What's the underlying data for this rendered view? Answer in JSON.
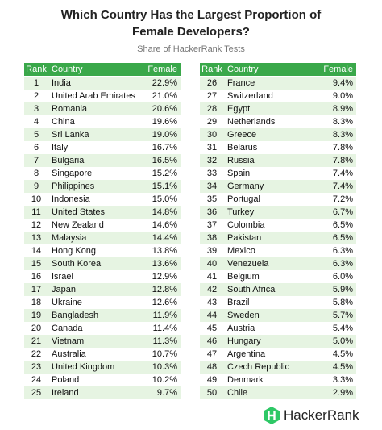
{
  "header": {
    "title_line1": "Which Country Has the Largest Proportion of",
    "title_line2": "Female Developers?",
    "subtitle": "Share of HackerRank Tests"
  },
  "tables": [
    {
      "columns": [
        "Rank",
        "Country",
        "Female"
      ],
      "rows": [
        [
          1,
          "India",
          "22.9%"
        ],
        [
          2,
          "United Arab Emirates",
          "21.0%"
        ],
        [
          3,
          "Romania",
          "20.6%"
        ],
        [
          4,
          "China",
          "19.6%"
        ],
        [
          5,
          "Sri Lanka",
          "19.0%"
        ],
        [
          6,
          "Italy",
          "16.7%"
        ],
        [
          7,
          "Bulgaria",
          "16.5%"
        ],
        [
          8,
          "Singapore",
          "15.2%"
        ],
        [
          9,
          "Philippines",
          "15.1%"
        ],
        [
          10,
          "Indonesia",
          "15.0%"
        ],
        [
          11,
          "United States",
          "14.8%"
        ],
        [
          12,
          "New Zealand",
          "14.6%"
        ],
        [
          13,
          "Malaysia",
          "14.4%"
        ],
        [
          14,
          "Hong Kong",
          "13.8%"
        ],
        [
          15,
          "South Korea",
          "13.6%"
        ],
        [
          16,
          "Israel",
          "12.9%"
        ],
        [
          17,
          "Japan",
          "12.8%"
        ],
        [
          18,
          "Ukraine",
          "12.6%"
        ],
        [
          19,
          "Bangladesh",
          "11.9%"
        ],
        [
          20,
          "Canada",
          "11.4%"
        ],
        [
          21,
          "Vietnam",
          "11.3%"
        ],
        [
          22,
          "Australia",
          "10.7%"
        ],
        [
          23,
          "United Kingdom",
          "10.3%"
        ],
        [
          24,
          "Poland",
          "10.2%"
        ],
        [
          25,
          "Ireland",
          "9.7%"
        ]
      ]
    },
    {
      "columns": [
        "Rank",
        "Country",
        "Female"
      ],
      "rows": [
        [
          26,
          "France",
          "9.4%"
        ],
        [
          27,
          "Switzerland",
          "9.0%"
        ],
        [
          28,
          "Egypt",
          "8.9%"
        ],
        [
          29,
          "Netherlands",
          "8.3%"
        ],
        [
          30,
          "Greece",
          "8.3%"
        ],
        [
          31,
          "Belarus",
          "7.8%"
        ],
        [
          32,
          "Russia",
          "7.8%"
        ],
        [
          33,
          "Spain",
          "7.4%"
        ],
        [
          34,
          "Germany",
          "7.4%"
        ],
        [
          35,
          "Portugal",
          "7.2%"
        ],
        [
          36,
          "Turkey",
          "6.7%"
        ],
        [
          37,
          "Colombia",
          "6.5%"
        ],
        [
          38,
          "Pakistan",
          "6.5%"
        ],
        [
          39,
          "Mexico",
          "6.3%"
        ],
        [
          40,
          "Venezuela",
          "6.3%"
        ],
        [
          41,
          "Belgium",
          "6.0%"
        ],
        [
          42,
          "South Africa",
          "5.9%"
        ],
        [
          43,
          "Brazil",
          "5.8%"
        ],
        [
          44,
          "Sweden",
          "5.7%"
        ],
        [
          45,
          "Austria",
          "5.4%"
        ],
        [
          46,
          "Hungary",
          "5.0%"
        ],
        [
          47,
          "Argentina",
          "4.5%"
        ],
        [
          48,
          "Czech Republic",
          "4.5%"
        ],
        [
          49,
          "Denmark",
          "3.3%"
        ],
        [
          50,
          "Chile",
          "2.9%"
        ]
      ]
    }
  ],
  "footer": {
    "brand": "HackerRank"
  }
}
